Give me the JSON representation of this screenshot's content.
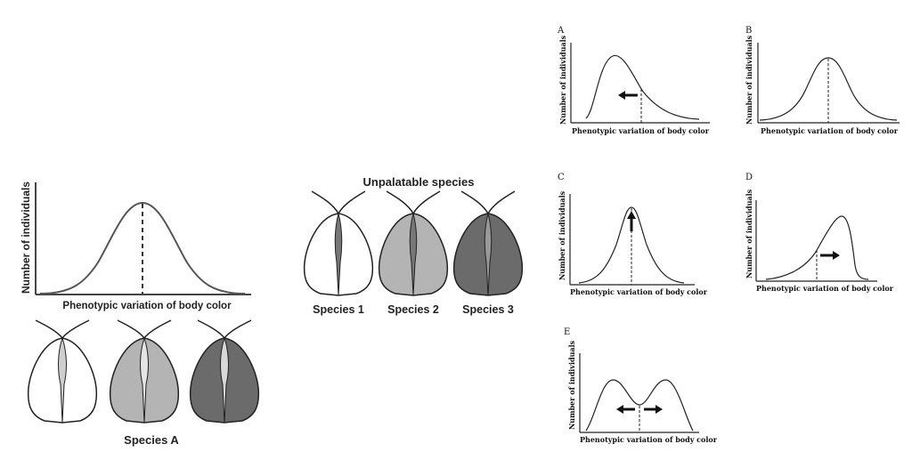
{
  "main_chart": {
    "ylabel": "Number of individuals",
    "xlabel": "Phenotypic variation of body color"
  },
  "unpalatable": {
    "title": "Unpalatable species",
    "species": [
      {
        "label": "Species 1",
        "fill": "#ffffff",
        "stripe": "#777777"
      },
      {
        "label": "Species 2",
        "fill": "#b4b4b4",
        "stripe": "#777777"
      },
      {
        "label": "Species 3",
        "fill": "#6b6b6b",
        "stripe": "#999999"
      }
    ]
  },
  "species_a": {
    "label": "Species A",
    "variants": [
      {
        "fill": "#ffffff",
        "stripe": "#cfcfcf"
      },
      {
        "fill": "#b4b4b4",
        "stripe": "#e5e5e5"
      },
      {
        "fill": "#6b6b6b",
        "stripe": "#d8d8d8"
      }
    ]
  },
  "panels": {
    "A": {
      "letter": "A",
      "ylabel": "Number of individuals",
      "xlabel": "Phenotypic variation of body color",
      "arrow": "left"
    },
    "B": {
      "letter": "B",
      "ylabel": "Number of individuals",
      "xlabel": "Phenotypic variation of body color",
      "arrow": "none"
    },
    "C": {
      "letter": "C",
      "ylabel": "Number of individuals",
      "xlabel": "Phenotypic variation of body color",
      "arrow": "up"
    },
    "D": {
      "letter": "D",
      "ylabel": "Number of individuals",
      "xlabel": "Phenotypic variation of body color",
      "arrow": "right"
    },
    "E": {
      "letter": "E",
      "ylabel": "Number of individuals",
      "xlabel": "Phenotypic variation of body color",
      "arrow": "both"
    }
  },
  "colors": {
    "axis": "#222222",
    "curve": "#333333",
    "outline": "#222222"
  }
}
